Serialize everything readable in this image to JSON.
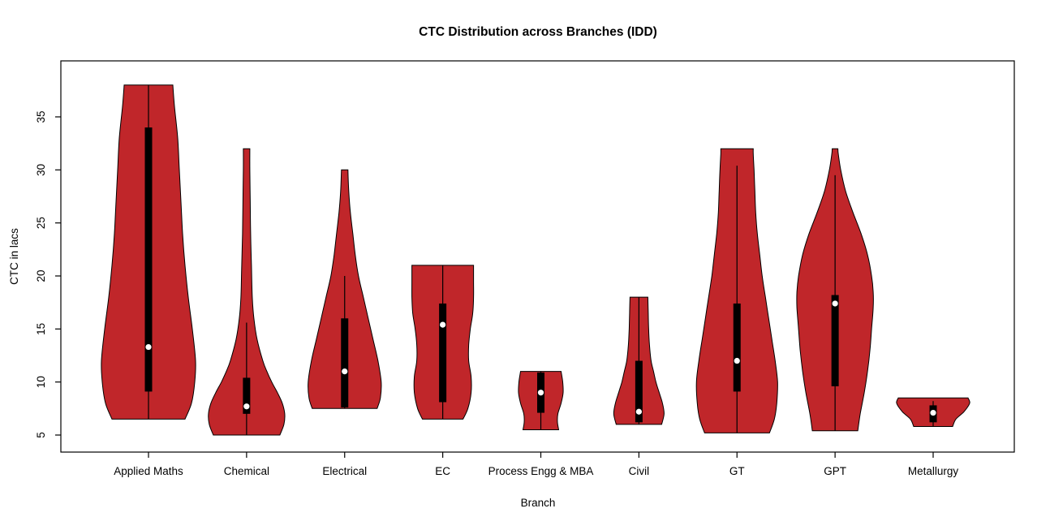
{
  "title": "CTC Distribution across Branches (IDD)",
  "chart_data": {
    "type": "violin",
    "title": "CTC Distribution across Branches (IDD)",
    "xlabel": "Branch",
    "ylabel": "CTC in lacs",
    "ylim": [
      4,
      39
    ],
    "yticks": [
      5,
      10,
      15,
      20,
      25,
      30,
      35
    ],
    "grid": false,
    "legend": "none",
    "fill_color": "#C0262A",
    "outline_color": "#000000",
    "box_color": "#000000",
    "median_dot_color": "#ffffff",
    "categories": [
      "Applied Maths",
      "Chemical",
      "Electrical",
      "EC",
      "Process Engg & MBA",
      "Civil",
      "GT",
      "GPT",
      "Metallurgy"
    ],
    "violins": [
      {
        "branch": "Applied Maths",
        "min": 6.5,
        "max": 38,
        "whisker_low": 6.5,
        "whisker_high": 38,
        "q1": 9.1,
        "q3": 34,
        "median": 13.3,
        "profile": [
          [
            6.5,
            45
          ],
          [
            8,
            53
          ],
          [
            10,
            57
          ],
          [
            12,
            58
          ],
          [
            15,
            54
          ],
          [
            18,
            49
          ],
          [
            21,
            45
          ],
          [
            24,
            42
          ],
          [
            27,
            40
          ],
          [
            30,
            38
          ],
          [
            33,
            36
          ],
          [
            36,
            32
          ],
          [
            38,
            30
          ]
        ]
      },
      {
        "branch": "Chemical",
        "min": 5,
        "max": 32,
        "whisker_low": 5,
        "whisker_high": 15.6,
        "q1": 7,
        "q3": 10.4,
        "median": 7.7,
        "profile": [
          [
            5,
            41
          ],
          [
            6,
            46
          ],
          [
            7,
            47
          ],
          [
            8,
            44
          ],
          [
            9,
            38
          ],
          [
            10,
            31
          ],
          [
            11,
            25
          ],
          [
            12,
            20
          ],
          [
            14,
            13
          ],
          [
            16,
            9
          ],
          [
            18,
            7
          ],
          [
            21,
            6
          ],
          [
            24,
            5
          ],
          [
            27,
            4.5
          ],
          [
            30,
            4
          ],
          [
            32,
            4
          ]
        ]
      },
      {
        "branch": "Electrical",
        "min": 7.5,
        "max": 30,
        "whisker_low": 7.5,
        "whisker_high": 20,
        "q1": 7.6,
        "q3": 16,
        "median": 11,
        "profile": [
          [
            7.5,
            40
          ],
          [
            8.5,
            44
          ],
          [
            10,
            45
          ],
          [
            12,
            41
          ],
          [
            14,
            35
          ],
          [
            16,
            29
          ],
          [
            18,
            23
          ],
          [
            20,
            17
          ],
          [
            22,
            13
          ],
          [
            24,
            10
          ],
          [
            26,
            7
          ],
          [
            28,
            5
          ],
          [
            30,
            4
          ]
        ]
      },
      {
        "branch": "EC",
        "min": 6.5,
        "max": 21,
        "whisker_low": 6.5,
        "whisker_high": 21,
        "q1": 8.1,
        "q3": 17.4,
        "median": 15.4,
        "profile": [
          [
            6.5,
            25
          ],
          [
            7.5,
            31
          ],
          [
            9,
            35
          ],
          [
            10.5,
            35
          ],
          [
            12,
            32
          ],
          [
            13.5,
            32
          ],
          [
            15,
            34
          ],
          [
            16.5,
            37
          ],
          [
            18,
            38
          ],
          [
            19.5,
            38
          ],
          [
            21,
            38
          ]
        ]
      },
      {
        "branch": "Process Engg & MBA",
        "min": 5.5,
        "max": 11,
        "whisker_low": 5.5,
        "whisker_high": 11,
        "q1": 7.1,
        "q3": 10.9,
        "median": 9,
        "profile": [
          [
            5.5,
            22
          ],
          [
            6.2,
            20.5
          ],
          [
            7,
            21
          ],
          [
            8,
            25
          ],
          [
            9,
            27.5
          ],
          [
            10,
            27
          ],
          [
            11,
            25
          ]
        ]
      },
      {
        "branch": "Civil",
        "min": 6,
        "max": 18,
        "whisker_low": 6,
        "whisker_high": 18,
        "q1": 6.2,
        "q3": 12,
        "median": 7.2,
        "profile": [
          [
            6,
            28
          ],
          [
            7,
            31
          ],
          [
            8,
            29
          ],
          [
            9,
            25
          ],
          [
            10,
            21
          ],
          [
            11,
            18
          ],
          [
            12,
            15
          ],
          [
            13.5,
            13
          ],
          [
            15,
            12
          ],
          [
            16.5,
            11.5
          ],
          [
            18,
            11
          ]
        ]
      },
      {
        "branch": "GT",
        "min": 5.2,
        "max": 32,
        "whisker_low": 5.2,
        "whisker_high": 30.4,
        "q1": 9.1,
        "q3": 17.4,
        "median": 12,
        "profile": [
          [
            5.2,
            40
          ],
          [
            6.5,
            46
          ],
          [
            8,
            49
          ],
          [
            10,
            50
          ],
          [
            12,
            47
          ],
          [
            14,
            43
          ],
          [
            16,
            39
          ],
          [
            18,
            35
          ],
          [
            20,
            31
          ],
          [
            22,
            28
          ],
          [
            24,
            25
          ],
          [
            26,
            23
          ],
          [
            28,
            22
          ],
          [
            30,
            21
          ],
          [
            31.5,
            20
          ],
          [
            32,
            20
          ]
        ]
      },
      {
        "branch": "GPT",
        "min": 5.4,
        "max": 32,
        "whisker_low": 5.4,
        "whisker_high": 29.5,
        "q1": 9.6,
        "q3": 18.2,
        "median": 17.4,
        "profile": [
          [
            5.4,
            28
          ],
          [
            7,
            31
          ],
          [
            9,
            36
          ],
          [
            11,
            40
          ],
          [
            13,
            43
          ],
          [
            15,
            45
          ],
          [
            17,
            47
          ],
          [
            18.5,
            47
          ],
          [
            20,
            45
          ],
          [
            22,
            40
          ],
          [
            24,
            32
          ],
          [
            26,
            22
          ],
          [
            28,
            13
          ],
          [
            30,
            7
          ],
          [
            31.5,
            4
          ],
          [
            32,
            3.5
          ]
        ]
      },
      {
        "branch": "Metallurgy",
        "min": 5.8,
        "max": 8.5,
        "whisker_low": 5.8,
        "whisker_high": 8.2,
        "q1": 6.2,
        "q3": 7.8,
        "median": 7.1,
        "profile": [
          [
            5.8,
            24
          ],
          [
            6.5,
            28
          ],
          [
            7.2,
            38
          ],
          [
            8,
            45
          ],
          [
            8.5,
            43
          ]
        ]
      }
    ]
  }
}
